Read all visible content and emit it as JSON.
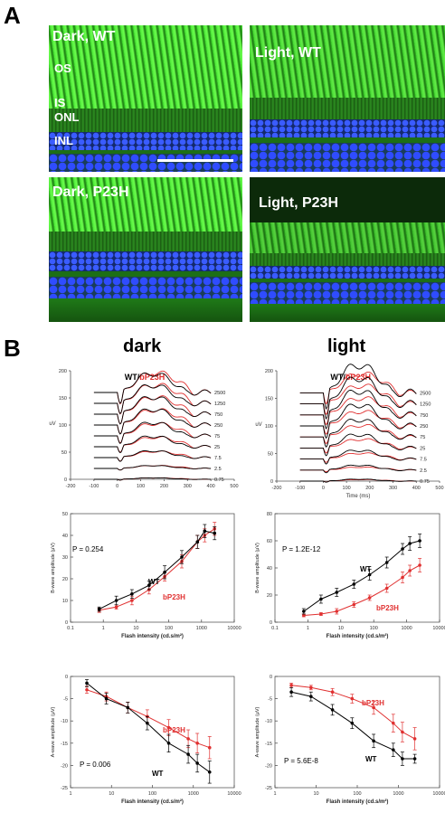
{
  "panel_a": {
    "letter": "A",
    "images": [
      {
        "label": "Dark, WT",
        "layers": [
          "OS",
          "IS",
          "ONL",
          "INL"
        ]
      },
      {
        "label": "Light, WT"
      },
      {
        "label": "Dark, P23H"
      },
      {
        "label": "Light, P23H"
      }
    ]
  },
  "panel_b": {
    "letter": "B",
    "col_titles": [
      "dark",
      "light"
    ]
  },
  "colors": {
    "wt": "#000000",
    "bp23h": "#e03030"
  },
  "chart_data": [
    {
      "id": "erg_dark",
      "type": "line",
      "title": "WT/bP23H",
      "title_parts": [
        "WT",
        "/",
        "bP23H"
      ],
      "ylabel": "uV",
      "xlabel": "",
      "xlim": [
        -200,
        500
      ],
      "ylim": [
        0,
        200
      ],
      "xticks": [
        -200,
        -100,
        0,
        100,
        200,
        300,
        400,
        500
      ],
      "yticks": [
        0,
        50,
        100,
        150,
        200
      ],
      "intensities": [
        "2500",
        "1250",
        "750",
        "250",
        "75",
        "25",
        "7.5",
        "2.5",
        "0.75"
      ],
      "offsets": [
        160,
        140,
        120,
        100,
        80,
        60,
        40,
        20,
        0
      ],
      "amp_wt": [
        40,
        38,
        36,
        33,
        28,
        22,
        14,
        6,
        3
      ],
      "amp_bp23h": [
        42,
        39,
        36,
        32,
        26,
        20,
        13,
        6,
        3
      ],
      "series": [
        {
          "name": "WT"
        },
        {
          "name": "bP23H"
        }
      ]
    },
    {
      "id": "erg_light",
      "type": "line",
      "title": "WT/bP23H",
      "title_parts": [
        "WT",
        "/",
        "bP23H"
      ],
      "ylabel": "uV",
      "xlabel": "Time (ms)",
      "xlim": [
        -200,
        500
      ],
      "ylim": [
        0,
        200
      ],
      "xticks": [
        -200,
        -100,
        0,
        100,
        200,
        300,
        400,
        500
      ],
      "yticks": [
        0,
        50,
        100,
        150,
        200
      ],
      "intensities": [
        "2500",
        "1250",
        "750",
        "250",
        "75",
        "25",
        "7.5",
        "2.5",
        "0.75"
      ],
      "offsets": [
        160,
        140,
        120,
        100,
        80,
        60,
        40,
        20,
        0
      ],
      "amp_wt": [
        58,
        54,
        50,
        44,
        36,
        28,
        18,
        10,
        4
      ],
      "amp_bp23h": [
        40,
        38,
        35,
        30,
        24,
        18,
        12,
        6,
        3
      ],
      "series": [
        {
          "name": "WT"
        },
        {
          "name": "bP23H"
        }
      ]
    },
    {
      "id": "bwave_dark",
      "type": "scatter",
      "title": "",
      "annotation": "P = 0.254",
      "xlabel": "Flash intensity (cd.s/m²)",
      "ylabel": "B-wave amplitude (μV)",
      "xscale": "log",
      "xlim": [
        0.1,
        10000
      ],
      "ylim": [
        0,
        50
      ],
      "xticks": [
        0.1,
        1,
        10,
        100,
        1000,
        10000
      ],
      "xtick_labels": [
        "0.1",
        "1",
        "10",
        "100",
        "1000",
        "10000"
      ],
      "yticks": [
        0,
        10,
        20,
        30,
        40,
        50
      ],
      "x": [
        0.75,
        2.5,
        7.5,
        25,
        75,
        250,
        750,
        1250,
        2500
      ],
      "series": [
        {
          "name": "WT",
          "values": [
            6,
            10,
            13,
            17,
            23,
            30,
            37,
            42,
            41
          ],
          "err": [
            1,
            2,
            2,
            2,
            3,
            3,
            3,
            3,
            3
          ]
        },
        {
          "name": "bP23H",
          "values": [
            5.5,
            7,
            10,
            15,
            21,
            28,
            37,
            40,
            43
          ],
          "err": [
            1,
            1,
            2,
            2,
            2,
            3,
            3,
            3,
            3
          ]
        }
      ],
      "legend_labels": [
        "WT",
        "bP23H"
      ]
    },
    {
      "id": "bwave_light",
      "type": "scatter",
      "title": "",
      "annotation": "P = 1.2E-12",
      "xlabel": "Flash intensity (cd.s/m²)",
      "ylabel": "B-wave amplitude (μV)",
      "xscale": "log",
      "xlim": [
        0.1,
        10000
      ],
      "ylim": [
        0,
        80
      ],
      "xticks": [
        0.1,
        1,
        10,
        100,
        1000,
        10000
      ],
      "xtick_labels": [
        "0.1",
        "1",
        "10",
        "100",
        "1000",
        "10000"
      ],
      "yticks": [
        0,
        20,
        40,
        60,
        80
      ],
      "x": [
        0.75,
        2.5,
        7.5,
        25,
        75,
        250,
        750,
        1250,
        2500
      ],
      "series": [
        {
          "name": "WT",
          "values": [
            8,
            17,
            22,
            28,
            35,
            44,
            54,
            58,
            60
          ],
          "err": [
            2,
            3,
            3,
            3,
            4,
            4,
            4,
            5,
            5
          ]
        },
        {
          "name": "bP23H",
          "values": [
            5,
            6,
            8,
            13,
            18,
            25,
            33,
            38,
            42
          ],
          "err": [
            1,
            1,
            2,
            2,
            2,
            3,
            4,
            4,
            5
          ]
        }
      ],
      "legend_labels": [
        "WT",
        "bP23H"
      ]
    },
    {
      "id": "awave_dark",
      "type": "scatter",
      "title": "",
      "annotation": "P = 0.006",
      "xlabel": "Flash intensity (cd.s/m²)",
      "ylabel": "A-wave amplitude (μV)",
      "xscale": "log",
      "xlim": [
        1,
        10000
      ],
      "ylim": [
        -25,
        0
      ],
      "xticks": [
        1,
        10,
        100,
        1000,
        10000
      ],
      "xtick_labels": [
        "1",
        "10",
        "100",
        "1000",
        "10000"
      ],
      "yticks": [
        0,
        -5,
        -10,
        -15,
        -20,
        -25
      ],
      "x": [
        2.5,
        7.5,
        25,
        75,
        250,
        750,
        1250,
        2500
      ],
      "series": [
        {
          "name": "WT",
          "values": [
            -1.5,
            -5,
            -7,
            -10.5,
            -15,
            -17.5,
            -19.5,
            -21.5
          ],
          "err": [
            0.8,
            1.2,
            1.2,
            1.5,
            2,
            2,
            2,
            2.5
          ]
        },
        {
          "name": "bP23H",
          "values": [
            -3,
            -4.5,
            -7,
            -9,
            -11.5,
            -14,
            -15,
            -16
          ],
          "err": [
            0.8,
            1,
            1.2,
            1.5,
            1.8,
            2,
            2.2,
            2.5
          ]
        }
      ],
      "legend_labels": [
        "WT",
        "bP23H"
      ]
    },
    {
      "id": "awave_light",
      "type": "scatter",
      "title": "",
      "annotation": "P = 5.6E-8",
      "xlabel": "Flash intensity (cd.s/m²)",
      "ylabel": "A-wave amplitude (μV)",
      "xscale": "log",
      "xlim": [
        1,
        10000
      ],
      "ylim": [
        -25,
        0
      ],
      "xticks": [
        1,
        10,
        100,
        1000,
        10000
      ],
      "xtick_labels": [
        "1",
        "10",
        "100",
        "1000",
        "10000"
      ],
      "yticks": [
        0,
        -5,
        -10,
        -15,
        -20,
        -25
      ],
      "x": [
        2.5,
        7.5,
        25,
        75,
        250,
        750,
        1250,
        2500
      ],
      "series": [
        {
          "name": "WT",
          "values": [
            -3.5,
            -4.5,
            -7.5,
            -10.5,
            -14.5,
            -16.5,
            -18.5,
            -18.5
          ],
          "err": [
            1,
            1,
            1.2,
            1.2,
            1.5,
            1.5,
            1.5,
            1
          ]
        },
        {
          "name": "bP23H",
          "values": [
            -2,
            -2.5,
            -3.5,
            -5,
            -7,
            -10.5,
            -12.5,
            -14
          ],
          "err": [
            0.5,
            0.5,
            0.8,
            1,
            1.5,
            2,
            2.2,
            2.5
          ]
        }
      ],
      "legend_labels": [
        "WT",
        "bP23H"
      ]
    }
  ]
}
